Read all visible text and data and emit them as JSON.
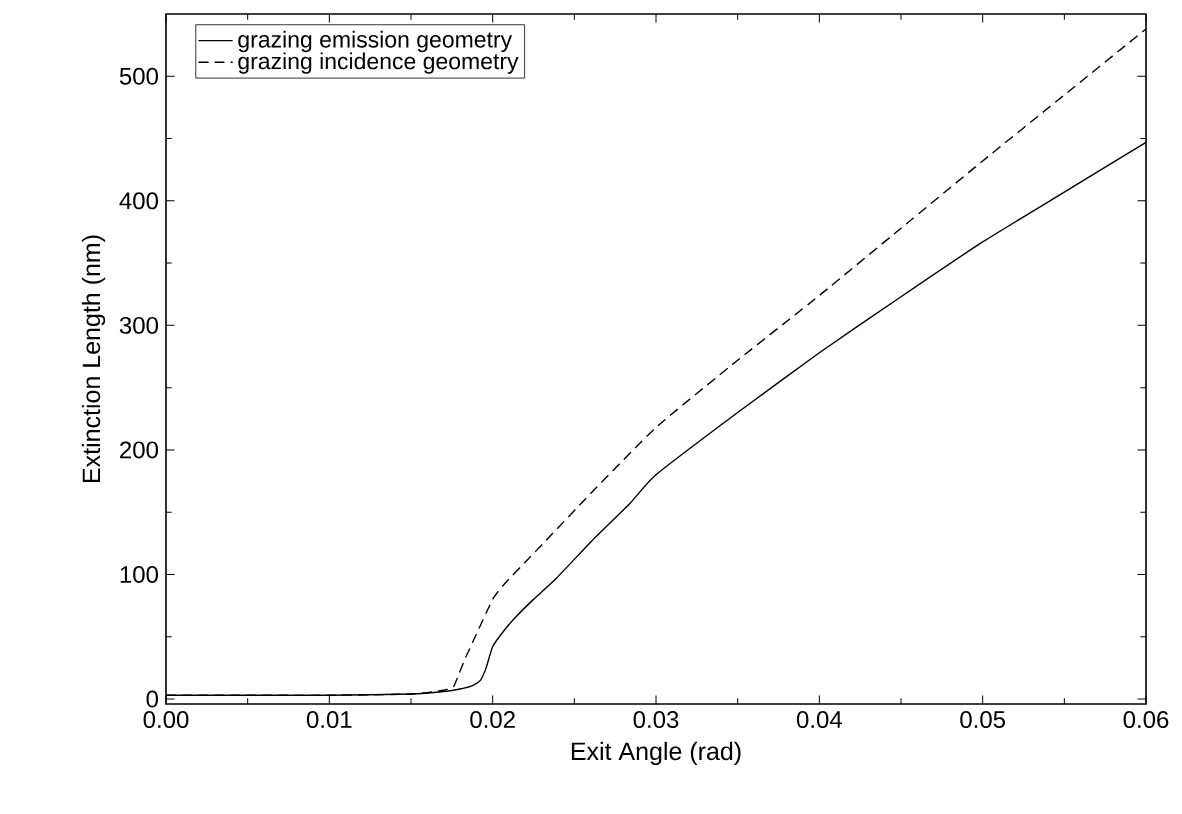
{
  "chart_data": {
    "type": "line",
    "xlabel": "Exit Angle (rad)",
    "ylabel": "Extinction Length (nm)",
    "xlim": [
      0,
      0.06
    ],
    "ylim": [
      -4,
      550
    ],
    "xticks": [
      {
        "value": 0,
        "label": "0.00"
      },
      {
        "value": 0.01,
        "label": "0.01"
      },
      {
        "value": 0.02,
        "label": "0.02"
      },
      {
        "value": 0.03,
        "label": "0.03"
      },
      {
        "value": 0.04,
        "label": "0.04"
      },
      {
        "value": 0.05,
        "label": "0.05"
      },
      {
        "value": 0.06,
        "label": "0.06"
      }
    ],
    "yticks": [
      0,
      100,
      200,
      300,
      400,
      500
    ],
    "legend": "top left",
    "grid": false,
    "series": [
      {
        "name": "grazing emission geometry",
        "color": "#000000",
        "line_style": "solid",
        "x": [
          0,
          0.005,
          0.01,
          0.015,
          0.017,
          0.018,
          0.0188,
          0.01925,
          0.0196,
          0.02,
          0.0207,
          0.0215,
          0.0225,
          0.0239,
          0.0263,
          0.0284,
          0.03,
          0.035,
          0.04,
          0.045,
          0.05,
          0.055,
          0.06
        ],
        "values": [
          3,
          3,
          3,
          4,
          6,
          8,
          11,
          15,
          25,
          42,
          55,
          67,
          80,
          97,
          130,
          157,
          180,
          230,
          278,
          323,
          367,
          407,
          447
        ]
      },
      {
        "name": "grazing incidence geometry",
        "color": "#000000",
        "line_style": "dashed",
        "x": [
          0,
          0.005,
          0.01,
          0.015,
          0.017,
          0.0176,
          0.01775,
          0.0183,
          0.019,
          0.02,
          0.0207,
          0.022,
          0.0231,
          0.026,
          0.03,
          0.035,
          0.04,
          0.045,
          0.05,
          0.055,
          0.06
        ],
        "values": [
          3,
          3,
          3,
          4,
          7,
          10,
          14,
          32,
          52,
          80,
          92,
          110,
          125,
          165,
          218,
          272,
          324,
          378,
          432,
          485,
          538
        ]
      }
    ]
  }
}
